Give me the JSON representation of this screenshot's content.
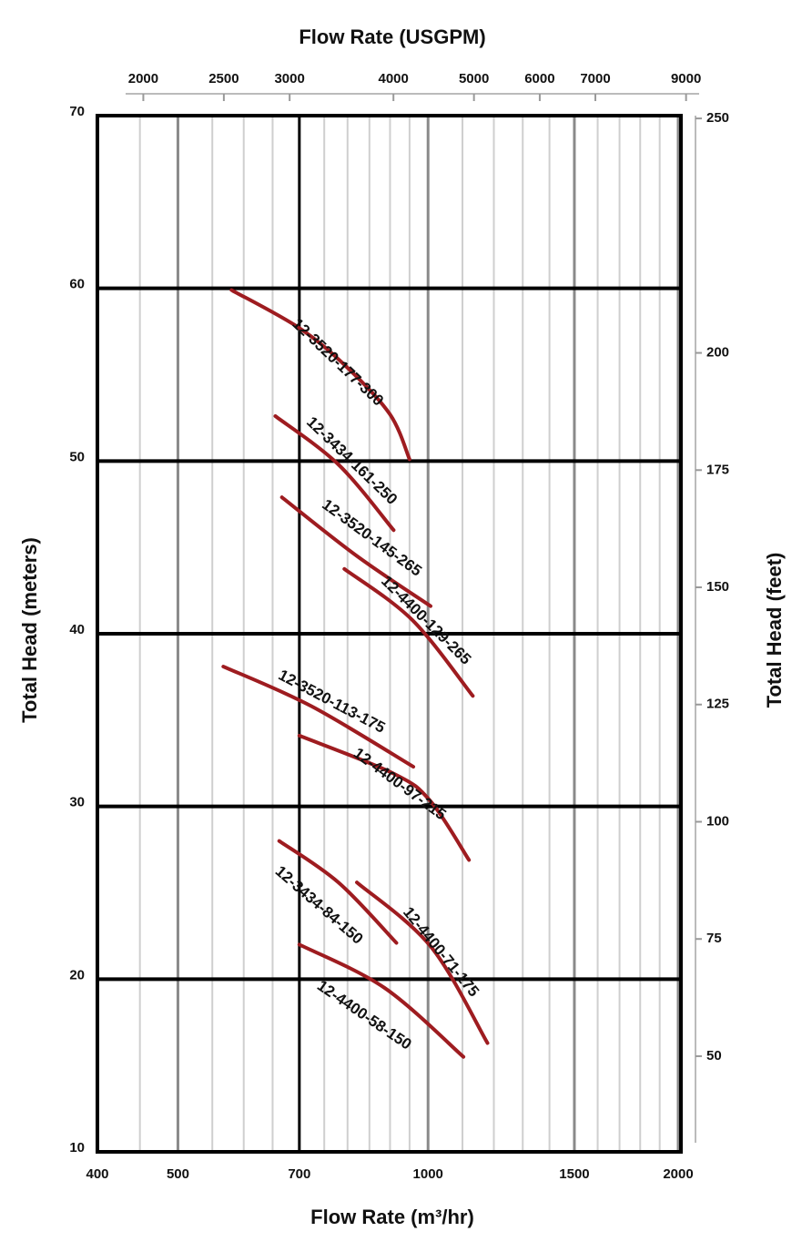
{
  "chart_data": {
    "type": "line",
    "title": "Flow Rate (USGPM)",
    "x_label": "Flow Rate (m³/hr)",
    "y_label": "Total Head (meters)",
    "y2_label": "Total Head (feet)",
    "log_x": true,
    "xlim": [
      400,
      2000
    ],
    "xticks": [
      400,
      500,
      700,
      1000,
      1500,
      2000
    ],
    "x_minor_grid": [
      450,
      550,
      600,
      650,
      750,
      800,
      850,
      900,
      950,
      1100,
      1200,
      1300,
      1400,
      1600,
      1700,
      1800,
      1900
    ],
    "x2lim": [
      1761,
      8806
    ],
    "x2ticks": [
      2000,
      2500,
      3000,
      4000,
      5000,
      6000,
      7000,
      9000
    ],
    "ylim": [
      10,
      70
    ],
    "yticks": [
      10,
      20,
      30,
      40,
      50,
      60,
      70
    ],
    "y2lim": [
      29.6,
      250.6
    ],
    "y2ticks": [
      50,
      75,
      100,
      125,
      150,
      175,
      200,
      250
    ],
    "grid": true,
    "series": [
      {
        "name": "12-3520-177-300",
        "color": "#9e1c20",
        "x": [
          580,
          700,
          800,
          900,
          950
        ],
        "values": [
          59.9,
          57.7,
          55.4,
          52.7,
          50.1
        ]
      },
      {
        "name": "12-3434-161-250",
        "color": "#9e1c20",
        "x": [
          655,
          780,
          909
        ],
        "values": [
          52.6,
          49.8,
          46.0
        ]
      },
      {
        "name": "12-3520-145-265",
        "color": "#9e1c20",
        "x": [
          667,
          821,
          1007
        ],
        "values": [
          47.9,
          44.5,
          41.6
        ]
      },
      {
        "name": "12-4400-129-265",
        "color": "#9e1c20",
        "x": [
          793,
          957,
          1132
        ],
        "values": [
          43.75,
          40.8,
          36.4
        ]
      },
      {
        "name": "12-3520-113-175",
        "color": "#9e1c20",
        "x": [
          567,
          724,
          960
        ],
        "values": [
          38.1,
          35.8,
          32.3
        ]
      },
      {
        "name": "12-4400-97-215",
        "color": "#9e1c20",
        "x": [
          700,
          909,
          1007,
          1120
        ],
        "values": [
          34.1,
          31.9,
          30.3,
          26.9
        ]
      },
      {
        "name": "12-3434-84-150",
        "color": "#9e1c20",
        "x": [
          662,
          780,
          916
        ],
        "values": [
          28.0,
          25.6,
          22.1
        ]
      },
      {
        "name": "12-4400-71-175",
        "color": "#9e1c20",
        "x": [
          821,
          1007,
          1179
        ],
        "values": [
          25.6,
          21.9,
          16.3
        ]
      },
      {
        "name": "12-4400-58-150",
        "color": "#9e1c20",
        "x": [
          700,
          886,
          1103
        ],
        "values": [
          22.0,
          19.5,
          15.5
        ]
      }
    ]
  }
}
